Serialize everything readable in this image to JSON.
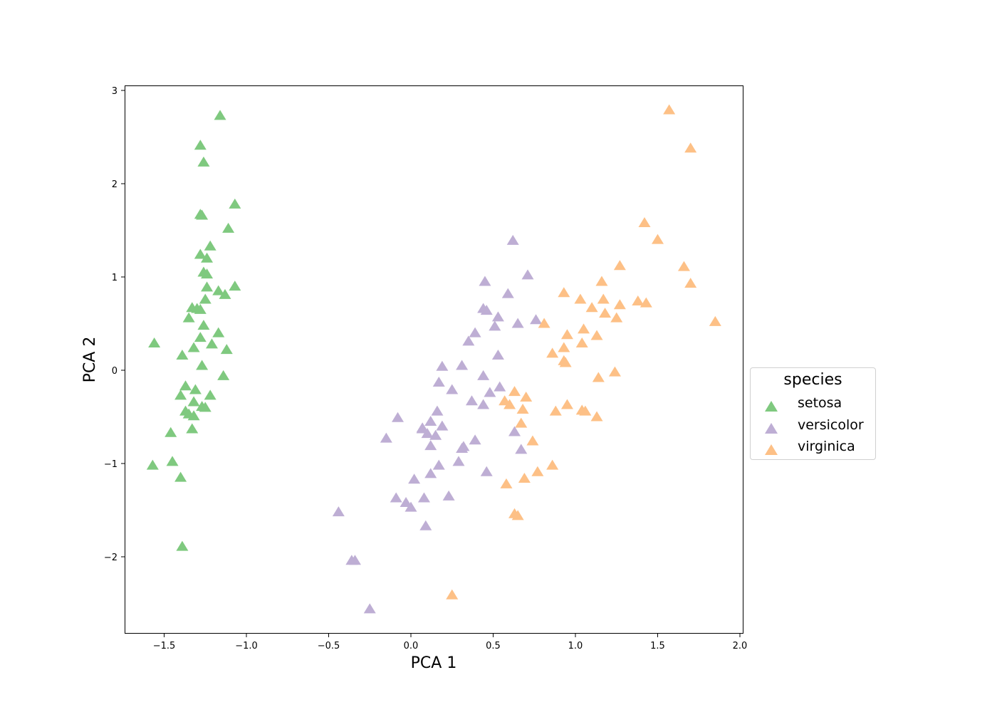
{
  "chart_data": {
    "type": "scatter",
    "title": "",
    "xlabel": "PCA 1",
    "ylabel": "PCA 2",
    "xlim": [
      -1.75,
      2.02
    ],
    "ylim": [
      -2.82,
      3.05
    ],
    "grid": false,
    "marker": "triangle-up",
    "xticks": [
      -1.5,
      -1.0,
      -0.5,
      0.0,
      0.5,
      1.0,
      1.5,
      2.0
    ],
    "xtick_labels": [
      "−1.5",
      "−1.0",
      "−0.5",
      "0.0",
      "0.5",
      "1.0",
      "1.5",
      "2.0"
    ],
    "yticks": [
      -2,
      -1,
      0,
      1,
      2,
      3
    ],
    "ytick_labels": [
      "−2",
      "−1",
      "0",
      "1",
      "2",
      "3"
    ],
    "legend": {
      "title": "species",
      "position": "right-outside",
      "entries": [
        "setosa",
        "versicolor",
        "virginica"
      ]
    },
    "series": [
      {
        "name": "setosa",
        "color": "#7fc97f",
        "points": [
          [
            -1.16,
            2.73
          ],
          [
            -1.28,
            2.41
          ],
          [
            -1.26,
            2.23
          ],
          [
            -1.07,
            1.78
          ],
          [
            -1.28,
            1.67
          ],
          [
            -1.27,
            1.66
          ],
          [
            -1.11,
            1.52
          ],
          [
            -1.22,
            1.33
          ],
          [
            -1.28,
            1.24
          ],
          [
            -1.24,
            1.2
          ],
          [
            -1.26,
            1.05
          ],
          [
            -1.24,
            1.03
          ],
          [
            -1.07,
            0.9
          ],
          [
            -1.24,
            0.89
          ],
          [
            -1.17,
            0.85
          ],
          [
            -1.13,
            0.81
          ],
          [
            -1.25,
            0.76
          ],
          [
            -1.33,
            0.67
          ],
          [
            -1.3,
            0.66
          ],
          [
            -1.28,
            0.65
          ],
          [
            -1.35,
            0.56
          ],
          [
            -1.26,
            0.48
          ],
          [
            -1.17,
            0.4
          ],
          [
            -1.56,
            0.29
          ],
          [
            -1.28,
            0.35
          ],
          [
            -1.21,
            0.28
          ],
          [
            -1.12,
            0.22
          ],
          [
            -1.39,
            0.16
          ],
          [
            -1.32,
            0.24
          ],
          [
            -1.27,
            0.05
          ],
          [
            -1.14,
            -0.06
          ],
          [
            -1.37,
            -0.17
          ],
          [
            -1.31,
            -0.21
          ],
          [
            -1.4,
            -0.27
          ],
          [
            -1.22,
            -0.27
          ],
          [
            -1.32,
            -0.34
          ],
          [
            -1.27,
            -0.39
          ],
          [
            -1.25,
            -0.4
          ],
          [
            -1.37,
            -0.44
          ],
          [
            -1.35,
            -0.47
          ],
          [
            -1.32,
            -0.49
          ],
          [
            -1.33,
            -0.63
          ],
          [
            -1.46,
            -0.67
          ],
          [
            -1.57,
            -1.02
          ],
          [
            -1.45,
            -0.98
          ],
          [
            -1.4,
            -1.15
          ],
          [
            -1.39,
            -1.89
          ]
        ]
      },
      {
        "name": "versicolor",
        "color": "#beaed4",
        "points": [
          [
            0.62,
            1.39
          ],
          [
            0.71,
            1.02
          ],
          [
            0.45,
            0.95
          ],
          [
            0.59,
            0.82
          ],
          [
            0.44,
            0.66
          ],
          [
            0.46,
            0.64
          ],
          [
            0.53,
            0.57
          ],
          [
            0.39,
            0.4
          ],
          [
            0.65,
            0.5
          ],
          [
            0.76,
            0.54
          ],
          [
            0.51,
            0.47
          ],
          [
            0.35,
            0.31
          ],
          [
            0.53,
            0.16
          ],
          [
            0.19,
            0.04
          ],
          [
            0.31,
            0.05
          ],
          [
            0.44,
            -0.06
          ],
          [
            0.25,
            -0.21
          ],
          [
            0.54,
            -0.18
          ],
          [
            0.17,
            -0.13
          ],
          [
            0.48,
            -0.24
          ],
          [
            0.37,
            -0.33
          ],
          [
            0.44,
            -0.37
          ],
          [
            0.16,
            -0.44
          ],
          [
            -0.08,
            -0.51
          ],
          [
            0.07,
            -0.62
          ],
          [
            0.12,
            -0.55
          ],
          [
            0.19,
            -0.6
          ],
          [
            0.07,
            -0.63
          ],
          [
            0.1,
            -0.68
          ],
          [
            0.15,
            -0.7
          ],
          [
            0.39,
            -0.75
          ],
          [
            -0.15,
            -0.73
          ],
          [
            0.12,
            -0.81
          ],
          [
            0.63,
            -0.66
          ],
          [
            0.67,
            -0.85
          ],
          [
            0.32,
            -0.82
          ],
          [
            0.31,
            -0.84
          ],
          [
            0.12,
            -1.11
          ],
          [
            0.17,
            -1.02
          ],
          [
            0.29,
            -0.98
          ],
          [
            0.46,
            -1.09
          ],
          [
            0.02,
            -1.17
          ],
          [
            -0.09,
            -1.37
          ],
          [
            -0.03,
            -1.42
          ],
          [
            0.0,
            -1.47
          ],
          [
            0.08,
            -1.37
          ],
          [
            0.23,
            -1.35
          ],
          [
            0.09,
            -1.67
          ],
          [
            -0.44,
            -1.52
          ],
          [
            -0.36,
            -2.04
          ],
          [
            -0.34,
            -2.04
          ],
          [
            -0.25,
            -2.56
          ]
        ]
      },
      {
        "name": "virginica",
        "color": "#fdc086",
        "points": [
          [
            1.57,
            2.79
          ],
          [
            1.7,
            2.38
          ],
          [
            1.42,
            1.58
          ],
          [
            1.5,
            1.4
          ],
          [
            1.27,
            1.12
          ],
          [
            1.66,
            1.11
          ],
          [
            1.7,
            0.93
          ],
          [
            1.16,
            0.95
          ],
          [
            0.93,
            0.83
          ],
          [
            1.03,
            0.76
          ],
          [
            1.17,
            0.76
          ],
          [
            1.1,
            0.67
          ],
          [
            1.18,
            0.61
          ],
          [
            1.38,
            0.74
          ],
          [
            1.27,
            0.7
          ],
          [
            1.43,
            0.72
          ],
          [
            1.25,
            0.56
          ],
          [
            1.85,
            0.52
          ],
          [
            0.81,
            0.5
          ],
          [
            0.95,
            0.38
          ],
          [
            1.05,
            0.44
          ],
          [
            1.13,
            0.37
          ],
          [
            0.86,
            0.18
          ],
          [
            0.93,
            0.24
          ],
          [
            1.04,
            0.29
          ],
          [
            0.93,
            0.1
          ],
          [
            0.94,
            0.08
          ],
          [
            1.24,
            -0.02
          ],
          [
            1.14,
            -0.08
          ],
          [
            0.57,
            -0.33
          ],
          [
            0.63,
            -0.23
          ],
          [
            0.6,
            -0.37
          ],
          [
            0.7,
            -0.29
          ],
          [
            0.68,
            -0.42
          ],
          [
            1.04,
            -0.43
          ],
          [
            1.06,
            -0.44
          ],
          [
            0.88,
            -0.44
          ],
          [
            0.95,
            -0.37
          ],
          [
            1.13,
            -0.5
          ],
          [
            0.67,
            -0.57
          ],
          [
            0.74,
            -0.76
          ],
          [
            0.77,
            -1.09
          ],
          [
            0.86,
            -1.02
          ],
          [
            0.69,
            -1.16
          ],
          [
            0.58,
            -1.22
          ],
          [
            0.63,
            -1.54
          ],
          [
            0.65,
            -1.56
          ],
          [
            0.25,
            -2.41
          ]
        ]
      }
    ]
  }
}
